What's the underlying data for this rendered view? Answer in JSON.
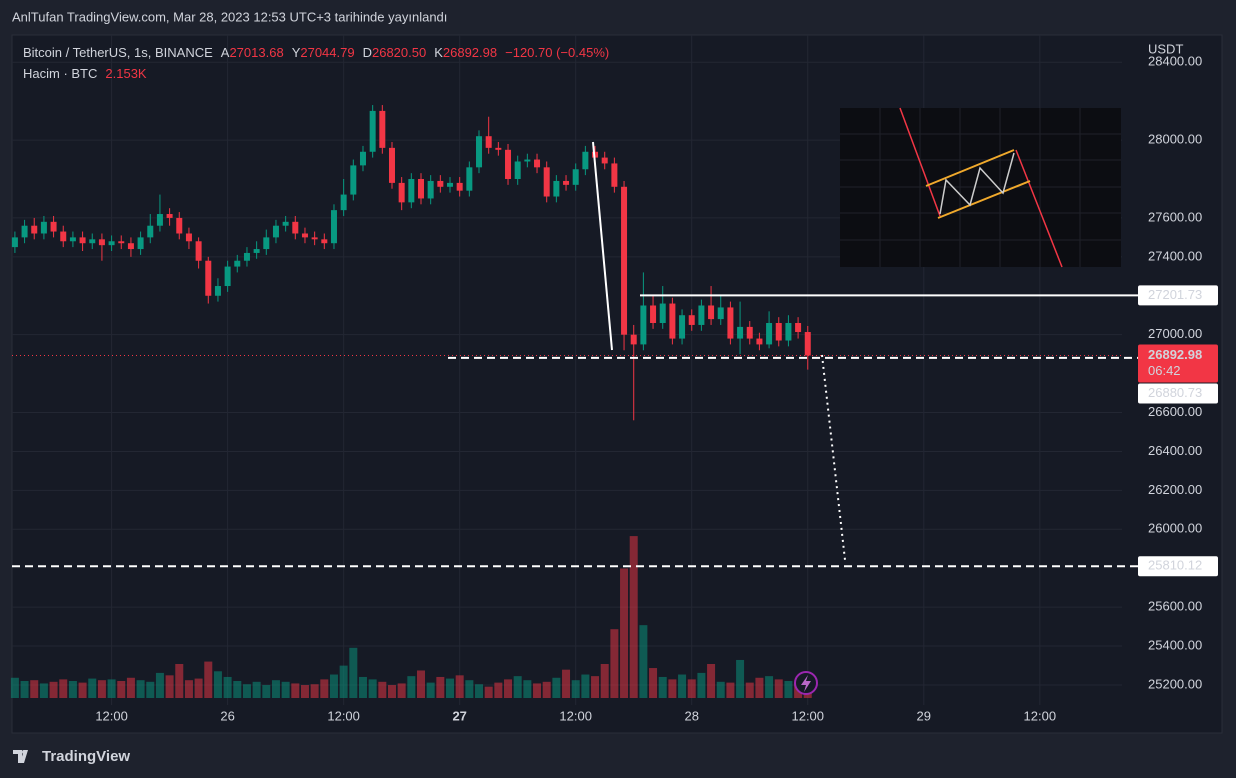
{
  "header": {
    "publisher": "AnlTufan TradingView.com, Mar 28, 2023 12:53 UTC+3 tarihinde yayınlandı",
    "footer": "TradingView"
  },
  "chart_data": {
    "type": "candlestick",
    "symbol": "Bitcoin / TetherUS, 1s, BINANCE",
    "ohlc_labels": [
      "A",
      "Y",
      "D",
      "K"
    ],
    "last_labels": [
      "27013.68",
      "27044.79",
      "26820.50",
      "26892.98"
    ],
    "change": "−120.70 (−0.45%)",
    "volume_title": "Hacim · BTC",
    "volume_label": "2.153K",
    "currency": "USDT",
    "countdown": "06:42",
    "x": [
      -10,
      -9,
      -8,
      -7,
      -6,
      -5,
      -4,
      -3,
      -2,
      -1,
      0,
      1,
      2,
      3,
      4,
      5,
      6,
      7,
      8,
      9,
      10,
      11,
      12,
      13,
      14,
      15,
      16,
      17,
      18,
      19,
      20,
      21,
      22,
      23,
      24,
      25,
      26,
      27,
      28,
      29,
      30,
      31,
      32,
      33,
      34,
      35,
      36,
      37,
      38,
      39,
      40,
      41,
      42,
      43,
      44,
      45,
      46,
      47,
      48,
      49,
      50,
      51,
      52,
      53,
      54,
      55,
      56,
      57,
      58,
      59,
      60,
      61,
      62,
      63,
      64,
      65,
      66,
      67,
      68,
      69,
      70,
      71,
      72
    ],
    "open": [
      27450,
      27500,
      27560,
      27520,
      27580,
      27530,
      27480,
      27500,
      27470,
      27490,
      27460,
      27480,
      27470,
      27440,
      27500,
      27560,
      27620,
      27600,
      27520,
      27480,
      27380,
      27200,
      27250,
      27350,
      27380,
      27420,
      27440,
      27500,
      27560,
      27580,
      27520,
      27500,
      27490,
      27470,
      27640,
      27720,
      27870,
      27940,
      28150,
      27960,
      27780,
      27680,
      27800,
      27700,
      27790,
      27760,
      27780,
      27740,
      27860,
      28020,
      27960,
      27950,
      27800,
      27890,
      27900,
      27860,
      27710,
      27790,
      27770,
      27850,
      27940,
      27910,
      27880,
      27760,
      27000,
      26950,
      27150,
      27060,
      27160,
      26980,
      27100,
      27050,
      27150,
      27080,
      27140,
      26980,
      27040,
      26980,
      26950,
      27060,
      26970,
      27060,
      27013.68
    ],
    "high": [
      27530,
      27590,
      27600,
      27610,
      27610,
      27560,
      27530,
      27530,
      27520,
      27520,
      27510,
      27510,
      27500,
      27530,
      27620,
      27720,
      27650,
      27630,
      27550,
      27500,
      27400,
      27290,
      27380,
      27410,
      27450,
      27480,
      27540,
      27590,
      27610,
      27610,
      27550,
      27530,
      27520,
      27670,
      27800,
      27900,
      27970,
      28180,
      28180,
      27990,
      27810,
      27830,
      27830,
      27820,
      27820,
      27810,
      27810,
      27890,
      28050,
      28120,
      27990,
      27980,
      27920,
      27930,
      27930,
      27890,
      27820,
      27820,
      27880,
      27970,
      27970,
      27940,
      27910,
      27790,
      27050,
      27320,
      27200,
      27250,
      27190,
      27130,
      27130,
      27180,
      27250,
      27200,
      27170,
      27170,
      27070,
      27010,
      27120,
      27090,
      27100,
      27090,
      27044.79
    ],
    "low": [
      27420,
      27470,
      27490,
      27490,
      27500,
      27450,
      27450,
      27430,
      27440,
      27380,
      27430,
      27440,
      27400,
      27410,
      27470,
      27530,
      27560,
      27490,
      27440,
      27340,
      27160,
      27170,
      27220,
      27320,
      27350,
      27390,
      27410,
      27470,
      27530,
      27490,
      27470,
      27460,
      27440,
      27440,
      27610,
      27690,
      27840,
      27910,
      27930,
      27750,
      27640,
      27650,
      27670,
      27670,
      27730,
      27730,
      27710,
      27710,
      27830,
      27930,
      27920,
      27770,
      27770,
      27860,
      27830,
      27680,
      27680,
      27740,
      27740,
      27820,
      27880,
      27850,
      27730,
      26920,
      26560,
      26920,
      27030,
      27030,
      26950,
      26950,
      27020,
      27020,
      27050,
      27050,
      26950,
      26900,
      26950,
      26920,
      26930,
      26940,
      26940,
      26980,
      26820.5
    ],
    "close": [
      27500,
      27560,
      27520,
      27580,
      27530,
      27480,
      27500,
      27470,
      27490,
      27460,
      27480,
      27470,
      27440,
      27500,
      27560,
      27620,
      27600,
      27520,
      27480,
      27380,
      27200,
      27250,
      27350,
      27380,
      27420,
      27440,
      27500,
      27560,
      27580,
      27520,
      27500,
      27490,
      27470,
      27640,
      27720,
      27870,
      27940,
      28150,
      27960,
      27780,
      27680,
      27800,
      27700,
      27790,
      27760,
      27780,
      27740,
      27860,
      28020,
      27960,
      27950,
      27800,
      27890,
      27900,
      27860,
      27710,
      27790,
      27770,
      27850,
      27940,
      27910,
      27880,
      27760,
      27000,
      26950,
      27150,
      27060,
      27160,
      26980,
      27100,
      27050,
      27150,
      27080,
      27140,
      26980,
      27040,
      26980,
      26950,
      27060,
      26970,
      27060,
      27013.68,
      26892.98
    ],
    "volume": [
      2500,
      2100,
      2200,
      1800,
      2000,
      2300,
      2100,
      1900,
      2400,
      2200,
      2300,
      2100,
      2500,
      2200,
      2000,
      3100,
      2800,
      4200,
      2200,
      2400,
      4500,
      3300,
      2600,
      2100,
      1700,
      2000,
      1600,
      2200,
      2000,
      1800,
      1600,
      1700,
      2300,
      2900,
      4000,
      6200,
      2600,
      2300,
      2000,
      1600,
      1800,
      2700,
      3400,
      1900,
      2600,
      2400,
      2800,
      2200,
      1700,
      1400,
      1900,
      2300,
      2700,
      2200,
      1800,
      2000,
      2500,
      3500,
      2200,
      2900,
      2700,
      4200,
      8500,
      16000,
      20000,
      9000,
      3700,
      2600,
      2300,
      2900,
      2300,
      3100,
      4200,
      2000,
      1900,
      4700,
      1900,
      2500,
      2700,
      2300,
      2100,
      1900,
      2153
    ],
    "up_color": "#089981",
    "down_color": "#f23645",
    "xlim": [
      -10.3,
      104.5
    ],
    "xticks": [
      {
        "value": 0,
        "label": "12:00"
      },
      {
        "value": 12,
        "label": "26"
      },
      {
        "value": 24,
        "label": "12:00"
      },
      {
        "value": 36,
        "label": "27"
      },
      {
        "value": 48,
        "label": "12:00"
      },
      {
        "value": 60,
        "label": "28"
      },
      {
        "value": 72,
        "label": "12:00"
      },
      {
        "value": 84,
        "label": "29"
      },
      {
        "value": 96,
        "label": "12:00"
      }
    ],
    "ylim": [
      25097,
      28540
    ],
    "yticks": [
      {
        "value": 28400,
        "label": "28400.00"
      },
      {
        "value": 28000,
        "label": "28000.00"
      },
      {
        "value": 27600,
        "label": "27600.00"
      },
      {
        "value": 27400,
        "label": "27400.00"
      },
      {
        "value": 27000,
        "label": "27000.00"
      },
      {
        "value": 26600,
        "label": "26600.00"
      },
      {
        "value": 26400,
        "label": "26400.00"
      },
      {
        "value": 26200,
        "label": "26200.00"
      },
      {
        "value": 26000,
        "label": "26000.00"
      },
      {
        "value": 25600,
        "label": "25600.00"
      },
      {
        "value": 25400,
        "label": "25400.00"
      },
      {
        "value": 25200,
        "label": "25200.00"
      }
    ],
    "volume_ylim": [
      0,
      21000
    ],
    "levels": [
      27201.73,
      26880.73,
      25810.12
    ],
    "grid": true
  }
}
